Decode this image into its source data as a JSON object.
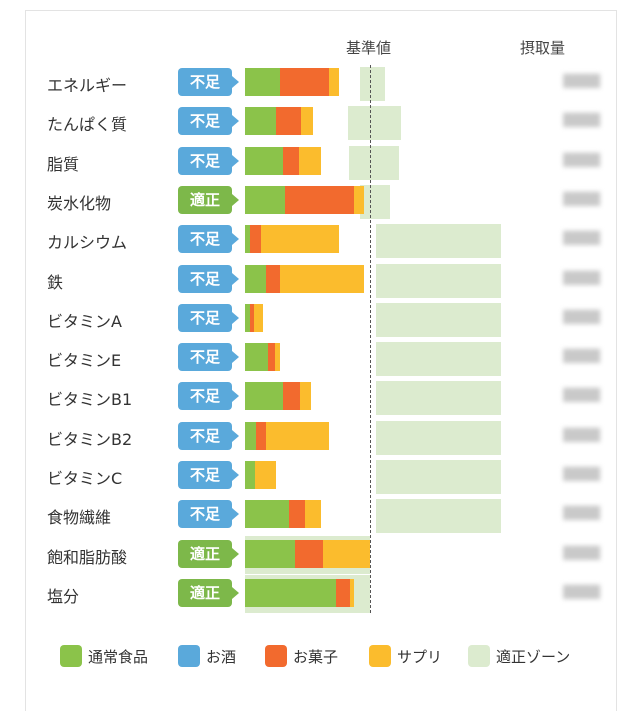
{
  "header": {
    "reference_label": "基準値",
    "intake_label": "摂取量"
  },
  "colors": {
    "normal_food": "#8bc34a",
    "alcohol": "#5aa9db",
    "snacks": "#f26a2e",
    "supplements": "#fbbc2d",
    "zone": "#dcebcf"
  },
  "legend": [
    {
      "key": "normal_food",
      "label": "通常食品"
    },
    {
      "key": "alcohol",
      "label": "お酒"
    },
    {
      "key": "snacks",
      "label": "お菓子"
    },
    {
      "key": "supplements",
      "label": "サプリ"
    },
    {
      "key": "zone",
      "label": "適正ゾーン"
    }
  ],
  "chart_data": {
    "type": "bar",
    "orientation": "horizontal",
    "stacked": true,
    "unit": "ratio to reference value (基準値 = 1.0)",
    "reference_value": 1.0,
    "categories": [
      "エネルギー",
      "たんぱく質",
      "脂質",
      "炭水化物",
      "カルシウム",
      "鉄",
      "ビタミンA",
      "ビタミンE",
      "ビタミンB1",
      "ビタミンB2",
      "ビタミンC",
      "食物繊維",
      "飽和脂肪酸",
      "塩分"
    ],
    "status": [
      "不足",
      "不足",
      "不足",
      "適正",
      "不足",
      "不足",
      "不足",
      "不足",
      "不足",
      "不足",
      "不足",
      "不足",
      "適正",
      "適正"
    ],
    "series": [
      {
        "name": "通常食品",
        "values": [
          0.28,
          0.25,
          0.3,
          0.32,
          0.04,
          0.17,
          0.04,
          0.18,
          0.3,
          0.09,
          0.08,
          0.35,
          0.4,
          0.73
        ]
      },
      {
        "name": "お酒",
        "values": [
          0,
          0,
          0,
          0,
          0,
          0,
          0,
          0,
          0,
          0,
          0,
          0,
          0,
          0
        ]
      },
      {
        "name": "お菓子",
        "values": [
          0.39,
          0.2,
          0.13,
          0.55,
          0.09,
          0.11,
          0.03,
          0.06,
          0.14,
          0.08,
          0,
          0.13,
          0.22,
          0.11
        ]
      },
      {
        "name": "サプリ",
        "values": [
          0.08,
          0.09,
          0.18,
          0.08,
          0.62,
          0.67,
          0.07,
          0.04,
          0.09,
          0.5,
          0.17,
          0.13,
          0.38,
          0.03
        ]
      }
    ],
    "appropriate_zone": [
      [
        0.92,
        1.12
      ],
      [
        0.82,
        1.25
      ],
      [
        0.83,
        1.23
      ],
      [
        0.92,
        1.16
      ],
      [
        1.05,
        2.05
      ],
      [
        1.05,
        2.05
      ],
      [
        1.05,
        2.05
      ],
      [
        1.05,
        2.05
      ],
      [
        1.05,
        2.05
      ],
      [
        1.05,
        2.05
      ],
      [
        1.05,
        2.05
      ],
      [
        1.05,
        2.05
      ],
      [
        0,
        1.0
      ],
      [
        0,
        1.0
      ]
    ],
    "intake_values_obscured": true,
    "legend_position": "bottom"
  }
}
